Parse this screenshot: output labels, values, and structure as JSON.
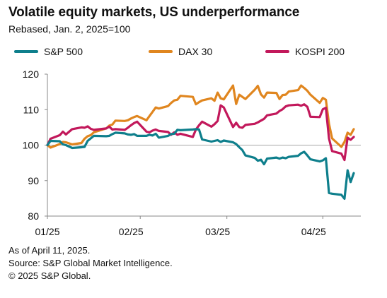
{
  "title": "Volatile equity markets, US underperformance",
  "subtitle": "Rebased, Jan. 2, 2025=100",
  "notes": {
    "as_of": "As of April 11, 2025.",
    "source": "Source: S&P Global Market Intelligence.",
    "copyright": "© 2025 S&P Global."
  },
  "colors": {
    "sp500": "#0e7f8c",
    "dax30": "#e0861f",
    "kospi200": "#c2185b",
    "axis": "#888888",
    "reference_line": "#a6a6a6"
  },
  "chart_data": {
    "type": "line",
    "title": "Volatile equity markets, US underperformance",
    "subtitle": "Rebased, Jan. 2, 2025=100",
    "x_ticks": [
      "01/25",
      "02/25",
      "03/25",
      "04/25"
    ],
    "xlim": [
      "2025-01-02",
      "2025-04-11"
    ],
    "y_ticks": [
      80,
      90,
      100,
      110,
      120
    ],
    "ylim": [
      80,
      120
    ],
    "reference_line": 100,
    "grid": false,
    "legend_position": "top",
    "x": [
      "2025-01-02",
      "2025-01-03",
      "2025-01-06",
      "2025-01-07",
      "2025-01-08",
      "2025-01-10",
      "2025-01-13",
      "2025-01-14",
      "2025-01-15",
      "2025-01-16",
      "2025-01-17",
      "2025-01-21",
      "2025-01-22",
      "2025-01-23",
      "2025-01-24",
      "2025-01-27",
      "2025-01-28",
      "2025-01-29",
      "2025-01-30",
      "2025-01-31",
      "2025-02-03",
      "2025-02-04",
      "2025-02-05",
      "2025-02-06",
      "2025-02-07",
      "2025-02-10",
      "2025-02-11",
      "2025-02-12",
      "2025-02-13",
      "2025-02-14",
      "2025-02-18",
      "2025-02-19",
      "2025-02-20",
      "2025-02-21",
      "2025-02-24",
      "2025-02-25",
      "2025-02-26",
      "2025-02-27",
      "2025-02-28",
      "2025-03-03",
      "2025-03-04",
      "2025-03-05",
      "2025-03-06",
      "2025-03-07",
      "2025-03-10",
      "2025-03-11",
      "2025-03-12",
      "2025-03-13",
      "2025-03-14",
      "2025-03-17",
      "2025-03-18",
      "2025-03-19",
      "2025-03-20",
      "2025-03-21",
      "2025-03-24",
      "2025-03-25",
      "2025-03-26",
      "2025-03-27",
      "2025-03-28",
      "2025-03-31",
      "2025-04-01",
      "2025-04-02",
      "2025-04-03",
      "2025-04-04",
      "2025-04-07",
      "2025-04-08",
      "2025-04-09",
      "2025-04-10",
      "2025-04-11"
    ],
    "series": [
      {
        "name": "S&P 500",
        "color": "#0e7f8c",
        "values": [
          100,
          101.2,
          101.1,
          100.2,
          100.0,
          99.2,
          99.4,
          99.5,
          101.2,
          101.9,
          102.6,
          102.5,
          102.6,
          103.1,
          103.5,
          103.3,
          103.0,
          102.9,
          103.1,
          102.6,
          102.6,
          102.9,
          102.7,
          103.2,
          102.1,
          102.6,
          103.1,
          103.2,
          104.3,
          104.2,
          104.4,
          104.5,
          104.4,
          101.6,
          101.0,
          101.2,
          101.4,
          100.9,
          101.3,
          100.8,
          100.3,
          99.4,
          98.6,
          97.1,
          96.4,
          95.6,
          95.9,
          94.6,
          96.2,
          96.5,
          96.2,
          96.5,
          96.3,
          96.7,
          97.0,
          97.7,
          98.1,
          97.1,
          96.0,
          95.4,
          95.7,
          96.3,
          86.5,
          86.3,
          86.0,
          84.9,
          92.9,
          89.6,
          92.1
        ]
      },
      {
        "name": "DAX 30",
        "color": "#e0861f",
        "values": [
          100,
          99.3,
          100.3,
          100.9,
          100.8,
          100.2,
          100.6,
          101.8,
          102.5,
          102.8,
          103.6,
          104.7,
          105.5,
          105.8,
          106.9,
          106.8,
          107.0,
          107.5,
          107.9,
          108.2,
          107.0,
          108.2,
          109.4,
          110.6,
          110.3,
          111.0,
          111.9,
          112.6,
          112.8,
          113.9,
          113.6,
          111.5,
          112.1,
          112.6,
          113.2,
          112.5,
          114.8,
          113.2,
          112.9,
          116.8,
          111.6,
          114.2,
          113.6,
          113.0,
          115.6,
          116.7,
          114.3,
          113.4,
          114.8,
          114.7,
          113.0,
          114.1,
          114.2,
          115.1,
          115.5,
          116.8,
          116.1,
          115.3,
          114.2,
          111.9,
          113.3,
          112.8,
          106.0,
          101.9,
          99.5,
          100.9,
          103.5,
          102.9,
          104.5
        ]
      },
      {
        "name": "KOSPI 200",
        "color": "#c2185b",
        "values": [
          100,
          101.8,
          102.8,
          103.8,
          103.0,
          104.5,
          105.0,
          104.9,
          105.3,
          104.6,
          104.3,
          104.7,
          105.2,
          104.4,
          104.5,
          104.3,
          104.9,
          105.6,
          106.2,
          106.6,
          103.8,
          103.6,
          104.1,
          104.4,
          104.0,
          103.7,
          102.9,
          103.6,
          102.9,
          103.2,
          102.3,
          104.4,
          105.6,
          106.6,
          105.2,
          105.9,
          106.8,
          111.2,
          110.6,
          105.1,
          106.3,
          105.1,
          104.9,
          105.7,
          106.0,
          106.4,
          106.9,
          107.4,
          108.4,
          108.9,
          109.6,
          110.1,
          110.9,
          111.2,
          111.4,
          111.1,
          111.5,
          110.8,
          108.0,
          107.9,
          110.1,
          110.5,
          101.9,
          98.3,
          97.6,
          95.8,
          102.1,
          101.5,
          102.3
        ]
      }
    ]
  }
}
